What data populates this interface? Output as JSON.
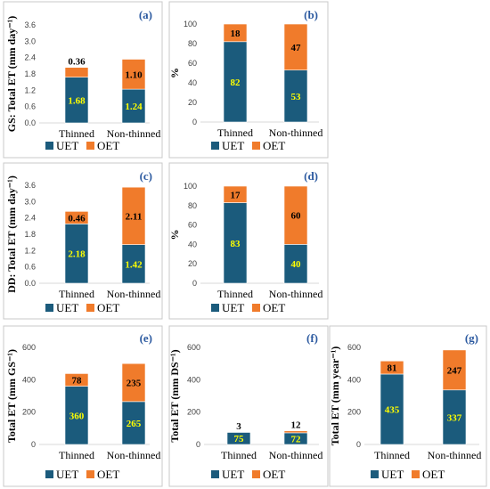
{
  "colors": {
    "uet": "#1b5b7c",
    "oet": "#f07b2b"
  },
  "legend": [
    "UET",
    "OET"
  ],
  "chart_data": [
    {
      "panel": "(a)",
      "type": "bar",
      "stacked": true,
      "ylabel": "GS: Total ET (mm day⁻¹)",
      "ylim": [
        0,
        3.6
      ],
      "yticks": [
        "0.0",
        "0.6",
        "1.2",
        "1.8",
        "2.4",
        "3.0",
        "3.6"
      ],
      "categories": [
        "Thinned",
        "Non-thinned"
      ],
      "series": [
        {
          "name": "UET",
          "values": [
            1.68,
            1.24
          ],
          "labels": [
            "1.68",
            "1.24"
          ]
        },
        {
          "name": "OET",
          "values": [
            0.36,
            1.1
          ],
          "labels": [
            "0.36",
            "1.10"
          ]
        }
      ]
    },
    {
      "panel": "(b)",
      "type": "bar",
      "stacked": true,
      "ylabel": "%",
      "ylim": [
        0,
        100
      ],
      "yticks": [
        "0",
        "20",
        "40",
        "60",
        "80",
        "100"
      ],
      "categories": [
        "Thinned",
        "Non-thinned"
      ],
      "series": [
        {
          "name": "UET",
          "values": [
            82,
            53
          ],
          "labels": [
            "82",
            "53"
          ]
        },
        {
          "name": "OET",
          "values": [
            18,
            47
          ],
          "labels": [
            "18",
            "47"
          ]
        }
      ]
    },
    {
      "panel": "(c)",
      "type": "bar",
      "stacked": true,
      "ylabel": "DD: Total ET (mm day⁻¹)",
      "ylim": [
        0,
        3.6
      ],
      "yticks": [
        "0.0",
        "0.6",
        "1.2",
        "1.8",
        "2.4",
        "3.0",
        "3.6"
      ],
      "categories": [
        "Thinned",
        "Non-thinned"
      ],
      "series": [
        {
          "name": "UET",
          "values": [
            2.18,
            1.42
          ],
          "labels": [
            "2.18",
            "1.42"
          ]
        },
        {
          "name": "OET",
          "values": [
            0.46,
            2.11
          ],
          "labels": [
            "0.46",
            "2.11"
          ]
        }
      ]
    },
    {
      "panel": "(d)",
      "type": "bar",
      "stacked": true,
      "ylabel": "%",
      "ylim": [
        0,
        100
      ],
      "yticks": [
        "0",
        "20",
        "40",
        "60",
        "80",
        "100"
      ],
      "categories": [
        "Thinned",
        "Non-thinned"
      ],
      "series": [
        {
          "name": "UET",
          "values": [
            83,
            40
          ],
          "labels": [
            "83",
            "40"
          ]
        },
        {
          "name": "OET",
          "values": [
            17,
            60
          ],
          "labels": [
            "17",
            "60"
          ]
        }
      ]
    },
    {
      "panel": "(e)",
      "type": "bar",
      "stacked": true,
      "ylabel": "Total ET (mm GS⁻¹)",
      "ylim": [
        0,
        600
      ],
      "yticks": [
        "0",
        "200",
        "400",
        "600"
      ],
      "categories": [
        "Thinned",
        "Non-thinned"
      ],
      "series": [
        {
          "name": "UET",
          "values": [
            360,
            265
          ],
          "labels": [
            "360",
            "265"
          ]
        },
        {
          "name": "OET",
          "values": [
            78,
            235
          ],
          "labels": [
            "78",
            "235"
          ]
        }
      ]
    },
    {
      "panel": "(f)",
      "type": "bar",
      "stacked": true,
      "ylabel": "Total ET (mm DS⁻¹)",
      "ylim": [
        0,
        600
      ],
      "yticks": [
        "0",
        "200",
        "400",
        "600"
      ],
      "categories": [
        "Thinned",
        "Non-thinned"
      ],
      "series": [
        {
          "name": "UET",
          "values": [
            75,
            72
          ],
          "labels": [
            "75",
            "72"
          ]
        },
        {
          "name": "OET",
          "values": [
            3,
            12
          ],
          "labels": [
            "3",
            "12"
          ]
        }
      ]
    },
    {
      "panel": "(g)",
      "type": "bar",
      "stacked": true,
      "ylabel": "Total ET (mm year⁻¹)",
      "ylim": [
        0,
        600
      ],
      "yticks": [
        "0",
        "200",
        "400",
        "600"
      ],
      "categories": [
        "Thinned",
        "Non-thinned"
      ],
      "series": [
        {
          "name": "UET",
          "values": [
            435,
            337
          ],
          "labels": [
            "435",
            "337"
          ]
        },
        {
          "name": "OET",
          "values": [
            81,
            247
          ],
          "labels": [
            "81",
            "247"
          ]
        }
      ]
    }
  ]
}
